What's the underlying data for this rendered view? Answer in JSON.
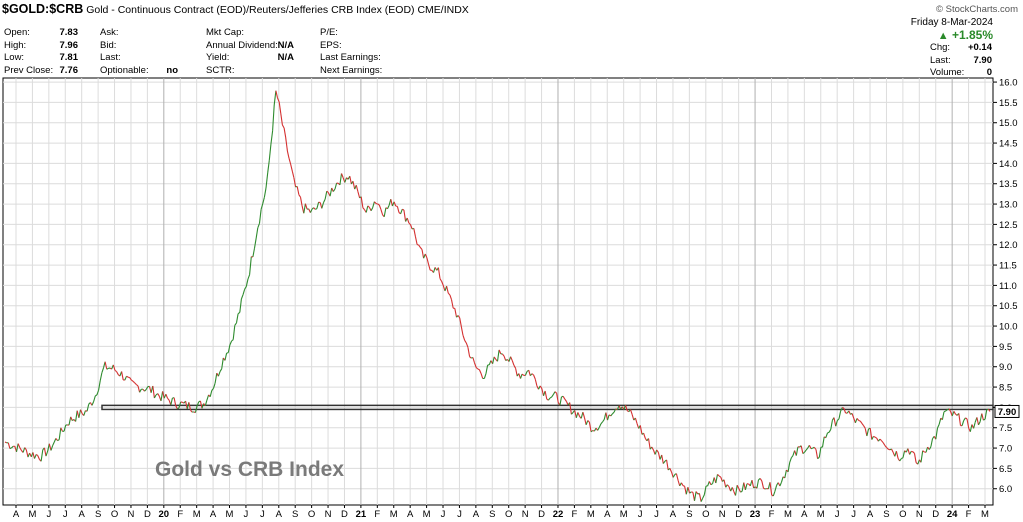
{
  "header": {
    "symbol": "$GOLD:$CRB",
    "description": "Gold - Continuous Contract (EOD)/Reuters/Jefferies CRB Index (EOD)",
    "exchange": "CME/INDX",
    "credit": "© StockCharts.com"
  },
  "quote": {
    "col1": [
      {
        "label": "Open:",
        "value": "7.83"
      },
      {
        "label": "High:",
        "value": "7.96"
      },
      {
        "label": "Low:",
        "value": "7.81"
      },
      {
        "label": "Prev Close:",
        "value": "7.76"
      }
    ],
    "col2": [
      {
        "label": "Ask:",
        "value": ""
      },
      {
        "label": "Bid:",
        "value": ""
      },
      {
        "label": "Last:",
        "value": ""
      },
      {
        "label": "Optionable:",
        "value": "no"
      }
    ],
    "col3": [
      {
        "label": "Mkt Cap:",
        "value": ""
      },
      {
        "label": "Annual Dividend:",
        "value": "N/A"
      },
      {
        "label": "Yield:",
        "value": "N/A"
      },
      {
        "label": "SCTR:",
        "value": ""
      }
    ],
    "col4": [
      {
        "label": "P/E:",
        "value": ""
      },
      {
        "label": "EPS:",
        "value": ""
      },
      {
        "label": "Last Earnings:",
        "value": ""
      },
      {
        "label": "Next Earnings:",
        "value": ""
      }
    ],
    "date": "Friday  8-Mar-2024",
    "pct_change": "+1.85%",
    "right": [
      {
        "label": "Chg:",
        "value": "+0.14"
      },
      {
        "label": "Last:",
        "value": "7.90"
      },
      {
        "label": "Volume:",
        "value": "0"
      }
    ]
  },
  "chart_data": {
    "type": "line",
    "title": "Gold vs CRB Index",
    "last_value_label": "7.90",
    "ylim": [
      5.6,
      16.1
    ],
    "y_ticks": [
      6.0,
      6.5,
      7.0,
      7.5,
      8.0,
      8.5,
      9.0,
      9.5,
      10.0,
      10.5,
      11.0,
      11.5,
      12.0,
      12.5,
      13.0,
      13.5,
      14.0,
      14.5,
      15.0,
      15.5,
      16.0
    ],
    "x_labels": [
      "A",
      "M",
      "J",
      "J",
      "A",
      "S",
      "O",
      "N",
      "D",
      "20",
      "F",
      "M",
      "A",
      "M",
      "J",
      "J",
      "A",
      "S",
      "O",
      "N",
      "D",
      "21",
      "F",
      "M",
      "A",
      "M",
      "J",
      "J",
      "A",
      "S",
      "O",
      "N",
      "D",
      "22",
      "F",
      "M",
      "A",
      "M",
      "J",
      "J",
      "A",
      "S",
      "O",
      "N",
      "D",
      "23",
      "F",
      "M",
      "A",
      "M",
      "J",
      "J",
      "A",
      "S",
      "O",
      "N",
      "D",
      "24",
      "F",
      "M"
    ],
    "support_band": [
      7.95,
      8.05
    ],
    "colors": {
      "up": "#2e8b2e",
      "down": "#d43030",
      "grid": "#dcdcdc",
      "band": "#333333"
    },
    "series": [
      {
        "values": [
          7.15,
          7.05,
          6.95,
          6.85,
          6.8,
          7.0,
          7.3,
          7.65,
          7.8,
          7.9,
          8.3,
          9.0,
          8.95,
          8.8,
          8.55,
          8.5,
          8.45,
          8.3,
          8.2,
          8.1,
          8.05,
          8.0,
          8.1,
          8.5,
          9.1,
          9.6,
          10.4,
          11.3,
          12.5,
          13.5,
          15.8,
          14.6,
          13.5,
          12.9,
          12.8,
          13.0,
          13.3,
          13.6,
          13.7,
          13.3,
          12.8,
          13.1,
          12.8,
          13.1,
          12.8,
          12.5,
          11.8,
          11.5,
          11.3,
          10.8,
          10.3,
          9.6,
          9.0,
          8.8,
          9.1,
          9.4,
          9.1,
          8.8,
          8.9,
          8.6,
          8.3,
          8.25,
          8.1,
          7.9,
          7.75,
          7.5,
          7.6,
          7.9,
          8.1,
          7.9,
          7.6,
          7.2,
          6.9,
          6.7,
          6.4,
          6.1,
          5.85,
          5.75,
          6.1,
          6.3,
          6.1,
          5.95,
          6.05,
          6.15,
          6.15,
          5.95,
          6.25,
          6.7,
          7.0,
          7.0,
          6.8,
          7.4,
          7.7,
          7.95,
          7.7,
          7.5,
          7.3,
          7.25,
          7.0,
          6.8,
          7.0,
          6.6,
          7.0,
          7.3,
          7.9,
          7.8,
          7.65,
          7.5,
          7.75,
          7.9
        ]
      }
    ]
  }
}
